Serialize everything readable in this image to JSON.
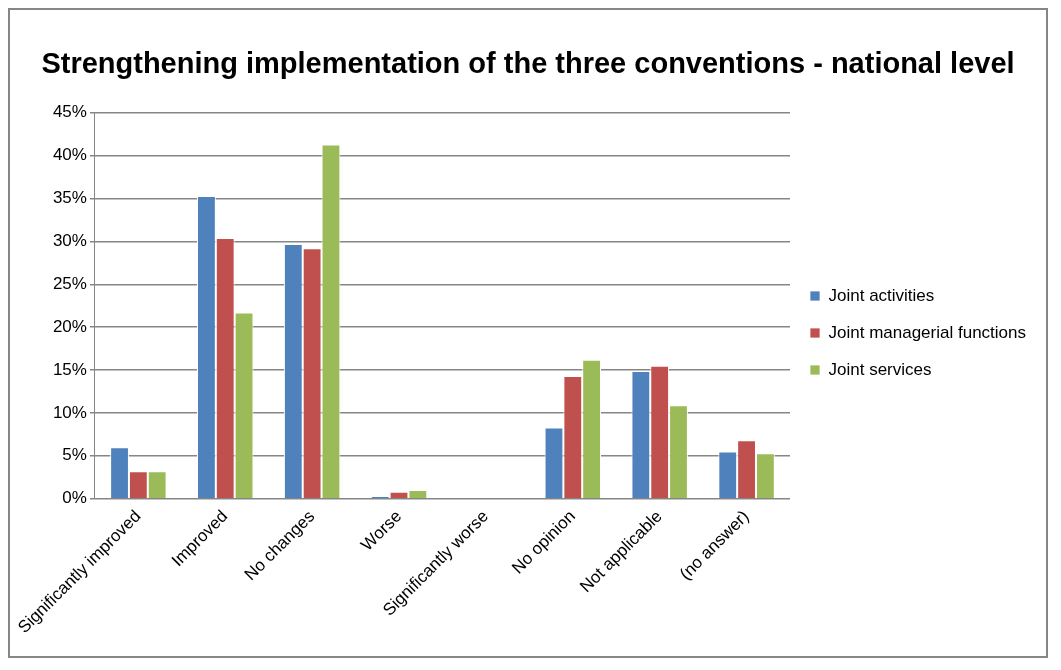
{
  "chart_data": {
    "type": "bar",
    "title": "Strengthening implementation of the three conventions - national level",
    "categories": [
      "Significantly improved",
      "Improved",
      "No changes",
      "Worse",
      "Significantly worse",
      "No opinion",
      "Not applicable",
      "(no answer)"
    ],
    "series": [
      {
        "name": "Joint activities",
        "color": "#4f81bd",
        "values": [
          6.0,
          35.3,
          29.7,
          0.3,
          0,
          8.3,
          14.9,
          5.5
        ]
      },
      {
        "name": "Joint managerial functions",
        "color": "#c0504d",
        "values": [
          3.2,
          30.4,
          29.2,
          0.8,
          0,
          14.3,
          15.5,
          6.8
        ]
      },
      {
        "name": "Joint services",
        "color": "#9bbb59",
        "values": [
          3.2,
          21.7,
          41.3,
          1.0,
          0,
          16.2,
          10.9,
          5.3
        ]
      }
    ],
    "ylim": [
      0,
      45
    ],
    "yticks": [
      {
        "value": 0,
        "label": "0%"
      },
      {
        "value": 5,
        "label": "5%"
      },
      {
        "value": 10,
        "label": "10%"
      },
      {
        "value": 15,
        "label": "15%"
      },
      {
        "value": 20,
        "label": "20%"
      },
      {
        "value": 25,
        "label": "25%"
      },
      {
        "value": 30,
        "label": "30%"
      },
      {
        "value": 35,
        "label": "35%"
      },
      {
        "value": 40,
        "label": "40%"
      },
      {
        "value": 45,
        "label": "45%"
      }
    ],
    "grid": "y",
    "legend": "right"
  }
}
